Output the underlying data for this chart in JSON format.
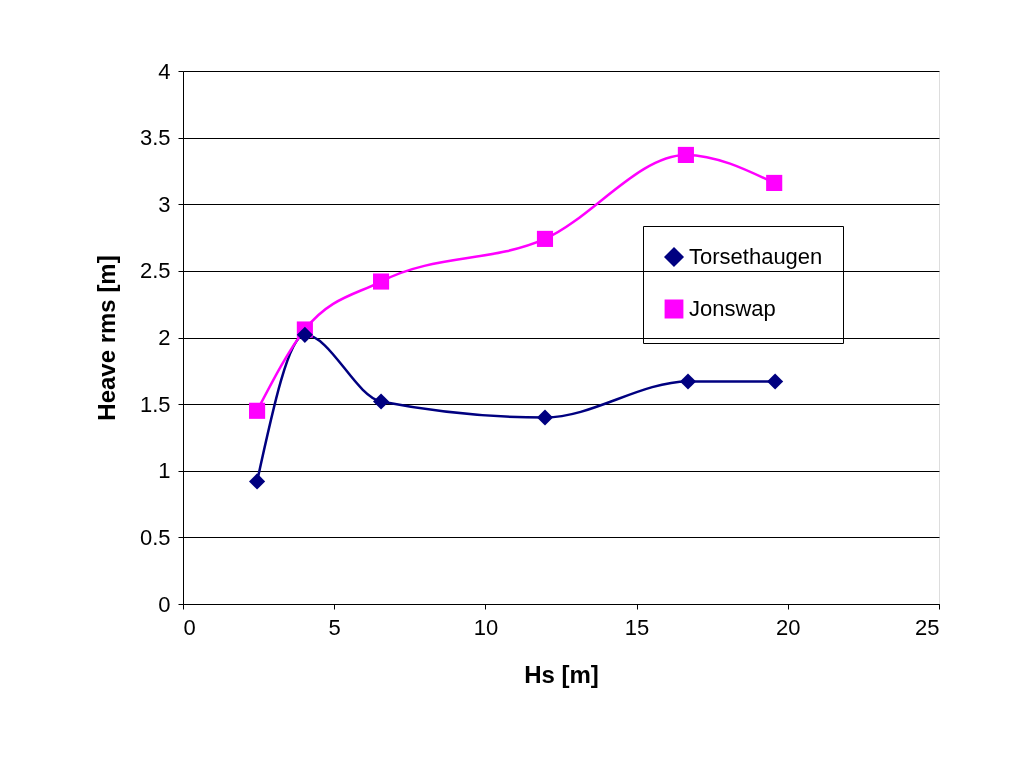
{
  "chart_data": {
    "type": "line",
    "xlabel": "Hs [m]",
    "ylabel": "Heave rms [m]",
    "xlim": [
      0,
      25
    ],
    "xticks": [
      0,
      5,
      10,
      15,
      20,
      25
    ],
    "ylim": [
      0,
      4
    ],
    "yticks": [
      0,
      0.5,
      1,
      1.5,
      2,
      2.5,
      3,
      3.5,
      4
    ],
    "grid": "y",
    "legend": "right",
    "series": [
      {
        "name": "Torsethaugen",
        "color": "#000080",
        "marker": "diamond",
        "x": [
          2.45,
          4.03,
          6.55,
          11.97,
          16.7,
          19.58
        ],
        "values": [
          0.92,
          2.02,
          1.52,
          1.4,
          1.67,
          1.67
        ]
      },
      {
        "name": "Jonswap",
        "color": "#ff00ff",
        "marker": "square",
        "x": [
          2.45,
          4.03,
          6.55,
          11.97,
          16.63,
          19.55
        ],
        "values": [
          1.45,
          2.06,
          2.42,
          2.74,
          3.37,
          3.16
        ]
      }
    ]
  }
}
